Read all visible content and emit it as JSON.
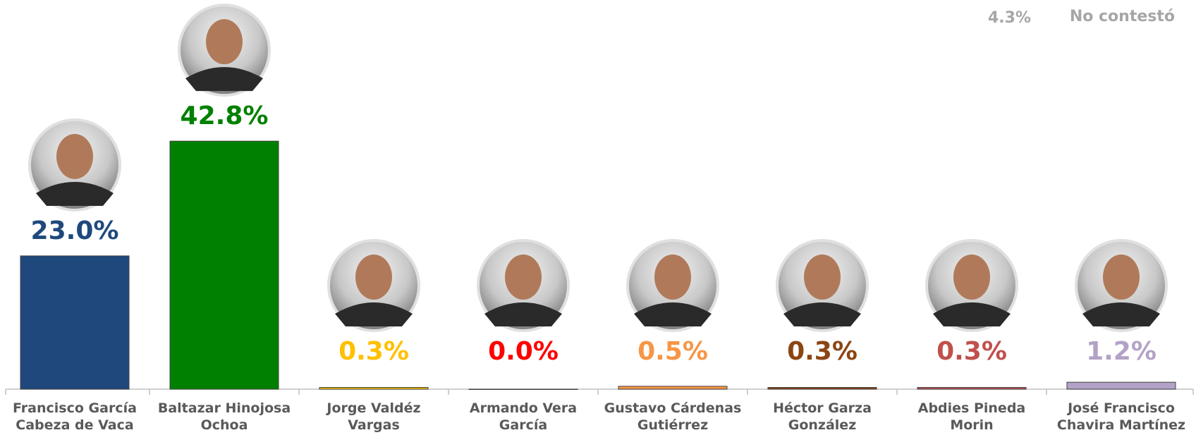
{
  "chart_data": {
    "type": "bar",
    "categories": [
      "Francisco García Cabeza de Vaca",
      "Baltazar Hinojosa Ochoa",
      "Jorge Valdéz Vargas",
      "Armando Vera García",
      "Gustavo Cárdenas Gutiérrez",
      "Héctor Garza González",
      "Abdies Pineda Morin",
      "José Francisco Chavira Martínez"
    ],
    "values": [
      23.0,
      42.8,
      0.3,
      0.0,
      0.5,
      0.3,
      0.3,
      1.2
    ],
    "value_labels": [
      "23.0%",
      "42.8%",
      "0.3%",
      "0.0%",
      "0.5%",
      "0.3%",
      "0.3%",
      "1.2%"
    ],
    "colors": [
      "#1f497d",
      "#008000",
      "#ffc000",
      "#ff0000",
      "#f79646",
      "#8b4513",
      "#c0504d",
      "#b3a2c7"
    ],
    "ylim": [
      0,
      50
    ],
    "annotation": {
      "text": "No contestó",
      "value": 4.3,
      "value_label": "4.3%"
    }
  }
}
